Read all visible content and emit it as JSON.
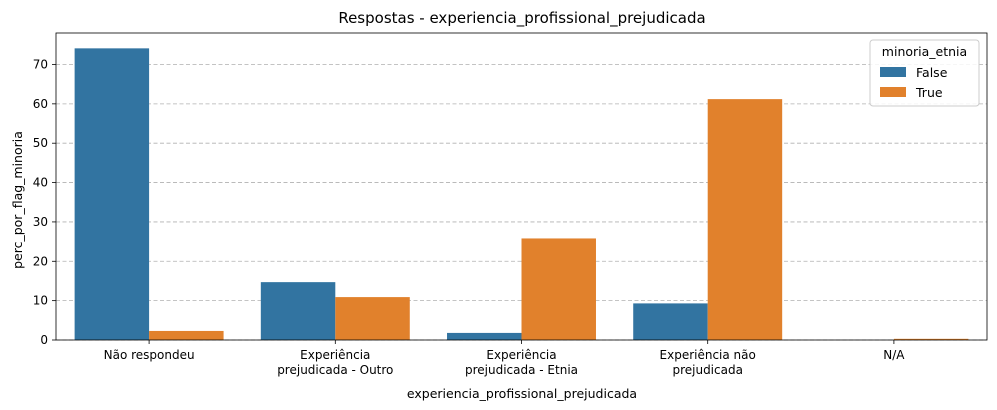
{
  "chart_data": {
    "type": "bar",
    "title": "Respostas - experiencia_profissional_prejudicada",
    "xlabel": "experiencia_profissional_prejudicada",
    "ylabel": "perc_por_flag_minoria",
    "ylim": [
      0,
      78
    ],
    "yticks": [
      0,
      10,
      20,
      30,
      40,
      50,
      60,
      70
    ],
    "grid": "y dashed",
    "categories": [
      [
        "Não respondeu"
      ],
      [
        "Experiência",
        "prejudicada - Outro"
      ],
      [
        "Experiência",
        "prejudicada - Etnia"
      ],
      [
        "Experiência não",
        "prejudicada"
      ],
      [
        "N/A"
      ]
    ],
    "legend": {
      "title": "minoria_etnia",
      "placement": "top-right"
    },
    "series": [
      {
        "name": "False",
        "color": "#3274a1",
        "values": [
          74.1,
          14.7,
          1.8,
          9.3,
          0.0
        ]
      },
      {
        "name": "True",
        "color": "#e1812c",
        "values": [
          2.3,
          10.9,
          25.8,
          61.2,
          0.3
        ]
      }
    ]
  }
}
